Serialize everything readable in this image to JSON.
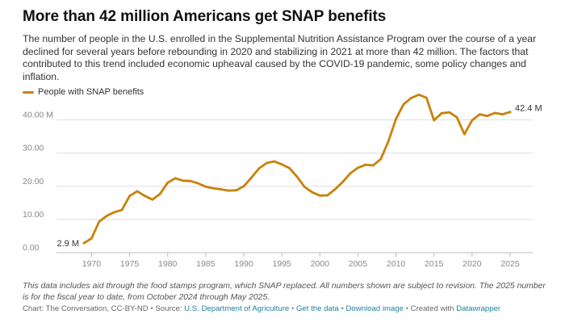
{
  "title": "More than 42 million Americans get SNAP benefits",
  "subtitle": "The number of people in the U.S. enrolled in the Supplemental Nutrition Assistance Program over the course of a year declined for several years before rebounding in 2020 and stabilizing in 2021 at more than 42 million. The factors that contributed to this trend included economic upheaval caused by the COVID-19 pandemic, some policy changes and inflation.",
  "notes": "This data includes aid through the food stamps program, which SNAP replaced. All numbers shown are subject to revision. The 2025 number is for the fiscal year to date, from October 2024 through May 2025.",
  "footer": {
    "chart_credit": "Chart: The Conversation, CC-BY-ND",
    "source_label": "Source:",
    "source_link": "U.S. Department of Agriculture",
    "get_data": "Get the data",
    "download": "Download image",
    "created_with": "Created with",
    "datawrapper": "Datawrapper"
  },
  "colors": {
    "line": "#c8820a",
    "grid": "#dddddd",
    "axis_text": "#888888",
    "link": "#1d81a2"
  },
  "chart_data": {
    "type": "line",
    "title": "More than 42 million Americans get SNAP benefits",
    "xlabel": "",
    "ylabel": "",
    "series": [
      {
        "name": "People with SNAP benefits",
        "x": [
          1969,
          1970,
          1971,
          1972,
          1973,
          1974,
          1975,
          1976,
          1977,
          1978,
          1979,
          1980,
          1981,
          1982,
          1983,
          1984,
          1985,
          1986,
          1987,
          1988,
          1989,
          1990,
          1991,
          1992,
          1993,
          1994,
          1995,
          1996,
          1997,
          1998,
          1999,
          2000,
          2001,
          2002,
          2003,
          2004,
          2005,
          2006,
          2007,
          2008,
          2009,
          2010,
          2011,
          2012,
          2013,
          2014,
          2015,
          2016,
          2017,
          2018,
          2019,
          2020,
          2021,
          2022,
          2023,
          2024,
          2025
        ],
        "values": [
          2.9,
          4.3,
          9.4,
          11.1,
          12.2,
          12.9,
          17.1,
          18.5,
          17.1,
          16.0,
          17.7,
          21.1,
          22.4,
          21.7,
          21.6,
          20.9,
          19.9,
          19.4,
          19.1,
          18.7,
          18.8,
          20.0,
          22.6,
          25.4,
          27.0,
          27.5,
          26.6,
          25.5,
          22.9,
          19.8,
          18.2,
          17.2,
          17.3,
          19.1,
          21.3,
          23.9,
          25.6,
          26.5,
          26.3,
          28.2,
          33.5,
          40.3,
          44.7,
          46.6,
          47.6,
          46.7,
          39.9,
          42.0,
          42.3,
          40.8,
          35.7,
          39.9,
          41.7,
          41.2,
          42.1,
          41.7,
          42.4
        ]
      }
    ],
    "xlim": [
      1969,
      2025
    ],
    "ylim": [
      0,
      45
    ],
    "xticks": [
      1970,
      1975,
      1980,
      1985,
      1990,
      1995,
      2000,
      2005,
      2010,
      2015,
      2020,
      2025
    ],
    "yticks": [
      0,
      10,
      20,
      30,
      40
    ],
    "ytick_labels": [
      "0.00",
      "10.00",
      "20.00",
      "30.00",
      "40.00 M"
    ],
    "start_label": "2.9 M",
    "end_label": "42.4 M",
    "legend": "top-left",
    "grid": true
  }
}
